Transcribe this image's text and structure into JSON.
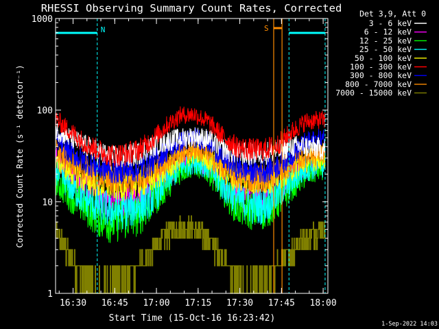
{
  "chart_data": {
    "type": "line",
    "title": "RHESSI Observing Summary Count Rates, Corrected",
    "xlabel": "Start Time (15-Oct-16 16:23:42)",
    "ylabel": "Corrected Count Rate (s⁻¹ detector⁻¹)",
    "yscale": "log",
    "ylim": [
      1,
      1000
    ],
    "xlim_minutes": [
      0,
      98
    ],
    "x_ticks": [
      {
        "label": "16:30",
        "minute": 6.3
      },
      {
        "label": "16:45",
        "minute": 21.3
      },
      {
        "label": "17:00",
        "minute": 36.3
      },
      {
        "label": "17:15",
        "minute": 51.3
      },
      {
        "label": "17:30",
        "minute": 66.3
      },
      {
        "label": "17:45",
        "minute": 81.3
      },
      {
        "label": "18:00",
        "minute": 96.3
      }
    ],
    "y_ticks": [
      {
        "label": "1",
        "value": 1
      },
      {
        "label": "10",
        "value": 10
      },
      {
        "label": "100",
        "value": 100
      },
      {
        "label": "1000",
        "value": 1000
      }
    ],
    "legend_header": "Det 3,9, Att 0",
    "legend_position": "top-right",
    "x_minutes": [
      0,
      5,
      10,
      15,
      20,
      25,
      30,
      35,
      40,
      45,
      50,
      55,
      60,
      65,
      70,
      75,
      80,
      85,
      90,
      95
    ],
    "series": [
      {
        "name": "3 - 6 keV",
        "color": "#ffffff",
        "values": [
          60,
          50,
          42,
          35,
          30,
          31,
          34,
          40,
          46,
          49,
          52,
          48,
          38,
          34,
          33,
          34,
          36,
          40,
          40,
          38
        ]
      },
      {
        "name": "6 - 12 keV",
        "color": "#ff00ff",
        "values": [
          30,
          20,
          15,
          12,
          10,
          10,
          11,
          14,
          20,
          28,
          30,
          26,
          16,
          12,
          11,
          11,
          14,
          20,
          25,
          27
        ]
      },
      {
        "name": "12 - 25 keV",
        "color": "#00ff00",
        "values": [
          17,
          12,
          9,
          7,
          6,
          6.5,
          7,
          10,
          15,
          22,
          26,
          22,
          14,
          9,
          8,
          8,
          10,
          15,
          20,
          23
        ]
      },
      {
        "name": "25 - 50 keV",
        "color": "#00ffff",
        "values": [
          22,
          15,
          11,
          9,
          8,
          8,
          9,
          11,
          17,
          24,
          28,
          24,
          15,
          11,
          9,
          9,
          12,
          17,
          23,
          25
        ]
      },
      {
        "name": "50 - 100 keV",
        "color": "#ffff00",
        "values": [
          30,
          22,
          18,
          16,
          15,
          15,
          16,
          18,
          23,
          30,
          34,
          30,
          22,
          18,
          17,
          17,
          19,
          23,
          28,
          30
        ]
      },
      {
        "name": "100 - 300 keV",
        "color": "#ff0000",
        "values": [
          80,
          60,
          45,
          37,
          32,
          33,
          37,
          48,
          68,
          88,
          90,
          75,
          52,
          40,
          37,
          37,
          42,
          58,
          75,
          78
        ]
      },
      {
        "name": "300 - 800 keV",
        "color": "#0000ff",
        "values": [
          50,
          35,
          28,
          24,
          22,
          22,
          23,
          27,
          36,
          45,
          50,
          45,
          30,
          24,
          22,
          22,
          25,
          33,
          44,
          48
        ]
      },
      {
        "name": "800 - 7000 keV",
        "color": "#ff8c00",
        "values": [
          38,
          28,
          23,
          20,
          18,
          18,
          19,
          22,
          28,
          35,
          38,
          33,
          24,
          20,
          18,
          18,
          21,
          26,
          32,
          34
        ]
      },
      {
        "name": "7000 - 15000 keV",
        "color": "#808000",
        "values": [
          5,
          2.5,
          1.5,
          1.2,
          1.3,
          1.5,
          2,
          3,
          4.5,
          5.5,
          5,
          4,
          2.5,
          1.5,
          1.2,
          1.3,
          2,
          3,
          4,
          5
        ]
      }
    ],
    "annotations": [
      {
        "label": "N",
        "type": "night",
        "color": "#00ffff",
        "intervals_minutes": [
          [
            0,
            15
          ],
          [
            84,
            97
          ]
        ]
      },
      {
        "label": "S",
        "type": "saa",
        "color": "#ff8c00",
        "intervals_minutes": [
          [
            78.5,
            81.5
          ]
        ]
      }
    ],
    "footer_timestamp": "1-Sep-2022 14:03"
  }
}
